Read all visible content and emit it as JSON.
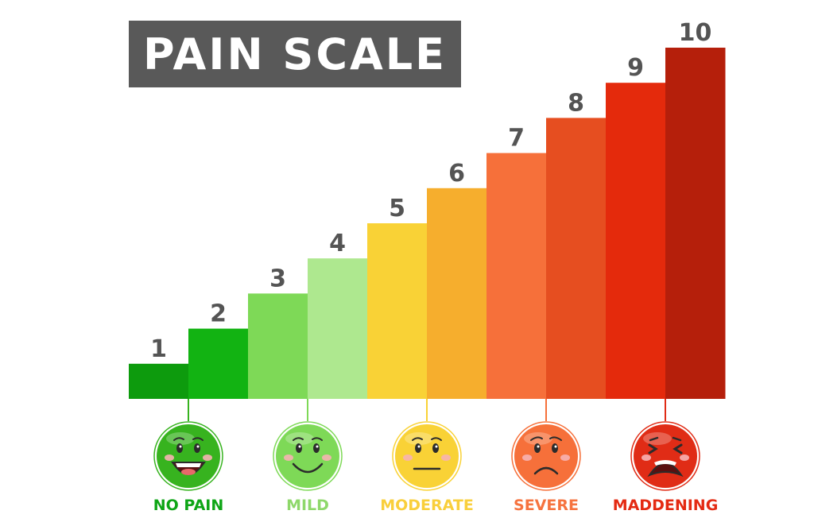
{
  "chart_data": {
    "type": "bar",
    "title": "PAIN SCALE",
    "categories": [
      "1",
      "2",
      "3",
      "4",
      "5",
      "6",
      "7",
      "8",
      "9",
      "10"
    ],
    "values": [
      1,
      2,
      3,
      4,
      5,
      6,
      7,
      8,
      9,
      10
    ],
    "ylim": [
      0,
      10
    ],
    "grid": false,
    "colors": [
      "#0d9b0d",
      "#12b312",
      "#7ed957",
      "#aee88f",
      "#f9d236",
      "#f6ae2d",
      "#f6703a",
      "#e64e20",
      "#e42a0c",
      "#b51f0b"
    ],
    "faces": [
      {
        "label": "NO PAIN",
        "level": 2,
        "color": "#0ea516",
        "face_color": "#37b31f",
        "icon": "laughing-face-icon"
      },
      {
        "label": "MILD",
        "level": 4,
        "color": "#8ed86a",
        "face_color": "#7ed957",
        "icon": "smiling-face-icon"
      },
      {
        "label": "MODERATE",
        "level": 6,
        "color": "#f9cf3b",
        "face_color": "#f9d236",
        "icon": "neutral-face-icon"
      },
      {
        "label": "SEVERE",
        "level": 8,
        "color": "#f6733f",
        "face_color": "#f6703a",
        "icon": "frowning-face-icon"
      },
      {
        "label": "MADDENING",
        "level": 10,
        "color": "#e42a12",
        "face_color": "#e02c16",
        "icon": "screaming-face-icon"
      }
    ]
  }
}
